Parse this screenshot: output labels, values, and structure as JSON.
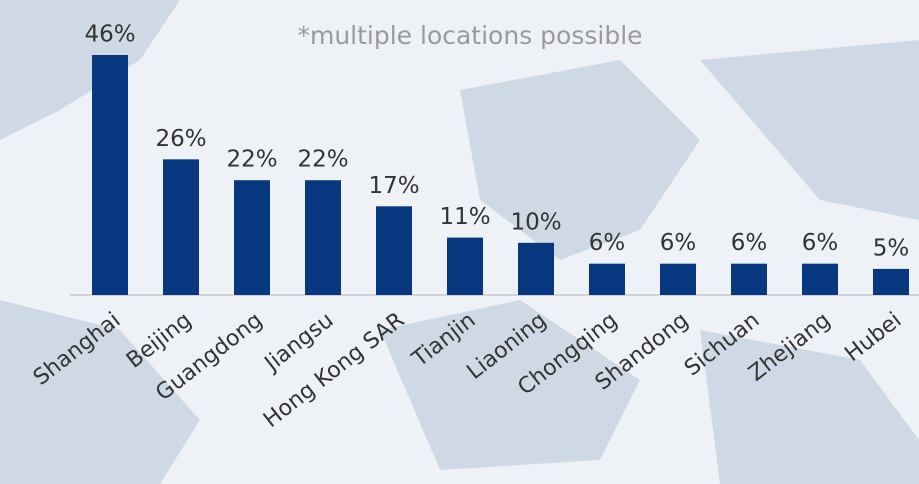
{
  "chart_data": {
    "type": "bar",
    "annotation": "*multiple locations possible",
    "categories": [
      "Shanghai",
      "Beijing",
      "Guangdong",
      "Jiangsu",
      "Hong Kong SAR",
      "Tianjin",
      "Liaoning",
      "Chongqing",
      "Shandong",
      "Sichuan",
      "Zhejiang",
      "Hubei"
    ],
    "values": [
      46,
      26,
      22,
      22,
      17,
      11,
      10,
      6,
      6,
      6,
      6,
      5
    ],
    "value_labels": [
      "46%",
      "26%",
      "22%",
      "22%",
      "17%",
      "11%",
      "10%",
      "6%",
      "6%",
      "6%",
      "6%",
      "5%"
    ],
    "color": "#06377f"
  }
}
